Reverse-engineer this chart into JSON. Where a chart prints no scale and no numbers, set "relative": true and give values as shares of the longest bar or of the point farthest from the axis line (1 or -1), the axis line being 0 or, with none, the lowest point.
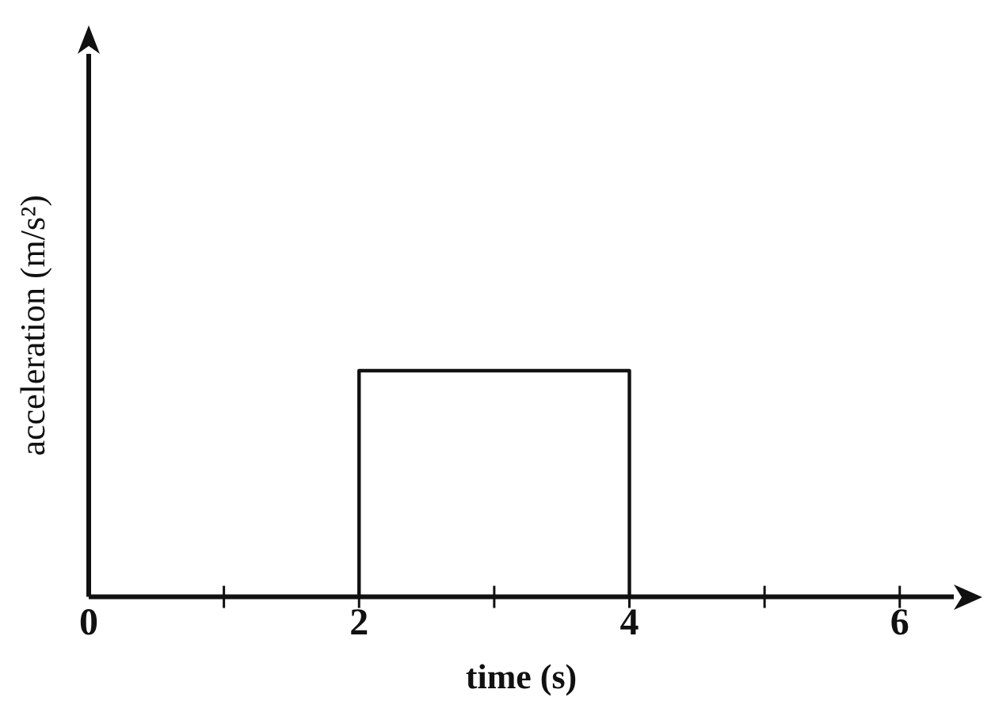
{
  "chart_data": {
    "type": "step",
    "xlabel": "time (s)",
    "ylabel": "acceleration (m/s²)",
    "relative": true,
    "x": [
      0,
      2,
      4,
      6
    ],
    "series": [
      {
        "color": "#111111",
        "values": [
          0,
          1,
          0,
          0
        ]
      }
    ],
    "xlim": [
      0,
      6.4
    ],
    "xticks": [
      0,
      {
        "value": 1,
        "label": null
      },
      2,
      {
        "value": 3,
        "label": null
      },
      4,
      {
        "value": 5,
        "label": null
      },
      6
    ],
    "grid": false,
    "legend": false,
    "marker": "none",
    "line_style": "solid"
  }
}
